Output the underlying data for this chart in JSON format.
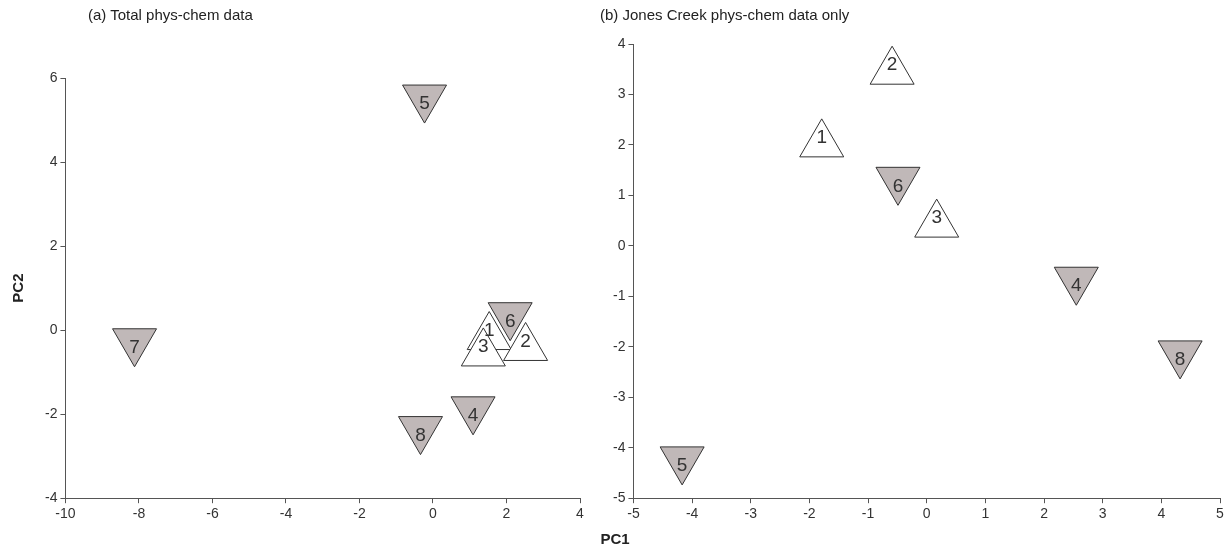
{
  "chart_data": [
    {
      "type": "scatter",
      "title": "(a) Total phys-chem data",
      "xlabel": "PC1",
      "ylabel": "PC2",
      "xlim": [
        -10,
        4
      ],
      "xticks": [
        -10,
        -8,
        -6,
        -4,
        -2,
        0,
        2,
        4
      ],
      "ylim": [
        -4,
        6
      ],
      "yticks": [
        -4,
        -2,
        0,
        2,
        4,
        6
      ],
      "legend": false,
      "series": [
        {
          "color": "#ffffff",
          "marker": "triangle",
          "x": [
            1.53,
            2.52,
            1.37
          ],
          "values": [
            -0.01,
            -0.27,
            -0.4
          ]
        },
        {
          "color": "#c0b8b8",
          "marker": "triangle_down",
          "x": [
            1.09,
            -0.23,
            2.1,
            -8.12,
            -0.34
          ],
          "values": [
            -2.04,
            5.38,
            0.2,
            -0.42,
            -2.51
          ]
        }
      ],
      "annotations": [
        {
          "text": "1",
          "x": 1.53,
          "y": -0.01
        },
        {
          "text": "2",
          "x": 2.52,
          "y": -0.27
        },
        {
          "text": "3",
          "x": 1.37,
          "y": -0.4
        },
        {
          "text": "4",
          "x": 1.09,
          "y": -2.04
        },
        {
          "text": "5",
          "x": -0.23,
          "y": 5.38
        },
        {
          "text": "6",
          "x": 2.1,
          "y": 0.2
        },
        {
          "text": "7",
          "x": -8.12,
          "y": -0.42
        },
        {
          "text": "8",
          "x": -0.34,
          "y": -2.51
        }
      ]
    },
    {
      "type": "scatter",
      "title": "(b) Jones Creek phys-chem data only",
      "xlim": [
        -5,
        5
      ],
      "xticks": [
        -5,
        -4,
        -3,
        -2,
        -1,
        0,
        1,
        2,
        3,
        4,
        5
      ],
      "ylim": [
        -5,
        4
      ],
      "yticks": [
        -5,
        -4,
        -3,
        -2,
        -1,
        0,
        1,
        2,
        3,
        4
      ],
      "legend": false,
      "series": [
        {
          "color": "#ffffff",
          "marker": "triangle",
          "x": [
            -1.79,
            -0.59,
            0.17
          ],
          "values": [
            2.14,
            3.58,
            0.55
          ]
        },
        {
          "color": "#c0b8b8",
          "marker": "triangle_down",
          "x": [
            2.55,
            -4.17,
            -0.49,
            4.32
          ],
          "values": [
            -0.8,
            -4.36,
            1.18,
            -2.26
          ]
        }
      ],
      "annotations": [
        {
          "text": "1",
          "x": -1.79,
          "y": 2.14
        },
        {
          "text": "2",
          "x": -0.59,
          "y": 3.58
        },
        {
          "text": "3",
          "x": 0.17,
          "y": 0.55
        },
        {
          "text": "4",
          "x": 2.55,
          "y": -0.8
        },
        {
          "text": "5",
          "x": -4.17,
          "y": -4.36
        },
        {
          "text": "6",
          "x": -0.49,
          "y": 1.18
        },
        {
          "text": "8",
          "x": 4.32,
          "y": -2.26
        }
      ]
    }
  ]
}
